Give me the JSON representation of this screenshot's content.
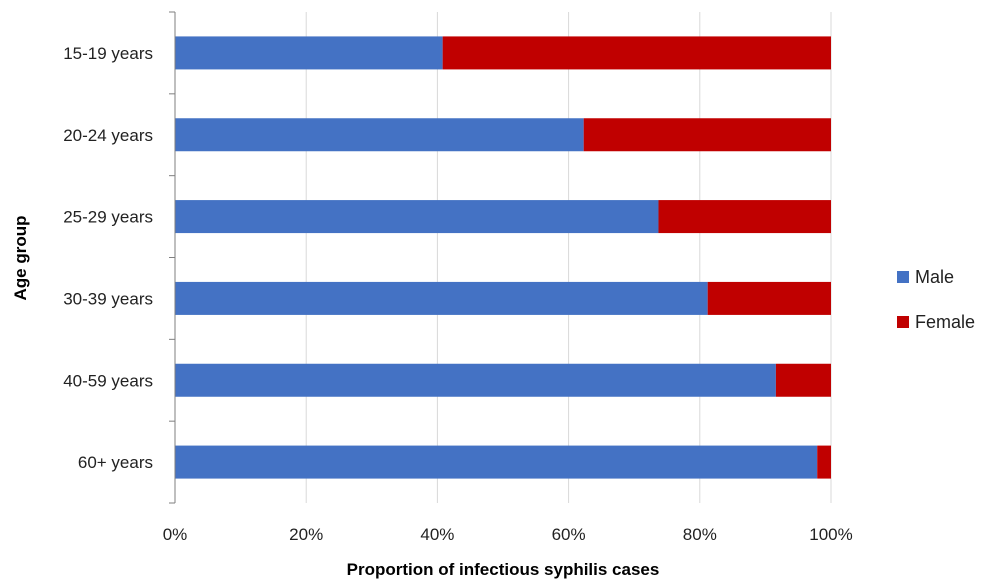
{
  "chart_data": {
    "type": "bar",
    "orientation": "horizontal",
    "stacked": "percent",
    "categories": [
      "15-19 years",
      "20-24 years",
      "25-29 years",
      "30-39 years",
      "40-59 years",
      "60+ years"
    ],
    "series": [
      {
        "name": "Male",
        "color": "#4472c4",
        "values": [
          40.8,
          62.3,
          73.7,
          81.2,
          91.6,
          97.9
        ]
      },
      {
        "name": "Female",
        "color": "#c00000",
        "values": [
          59.2,
          37.7,
          26.3,
          18.8,
          8.4,
          2.1
        ]
      }
    ],
    "xlabel": "Proportion of infectious syphilis cases",
    "ylabel": "Age group",
    "xlim": [
      0,
      100
    ],
    "x_ticks": [
      "0%",
      "20%",
      "40%",
      "60%",
      "80%",
      "100%"
    ],
    "grid": "vertical",
    "legend_position": "right"
  }
}
